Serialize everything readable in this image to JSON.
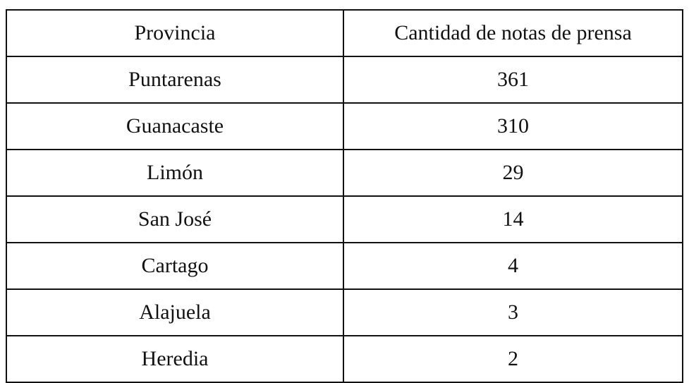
{
  "table": {
    "headers": [
      "Provincia",
      "Cantidad de notas de prensa"
    ],
    "rows": [
      [
        "Puntarenas",
        361
      ],
      [
        "Guanacaste",
        310
      ],
      [
        "Limón",
        29
      ],
      [
        "San José",
        14
      ],
      [
        "Cartago",
        4
      ],
      [
        "Alajuela",
        3
      ],
      [
        "Heredia",
        2
      ]
    ]
  }
}
